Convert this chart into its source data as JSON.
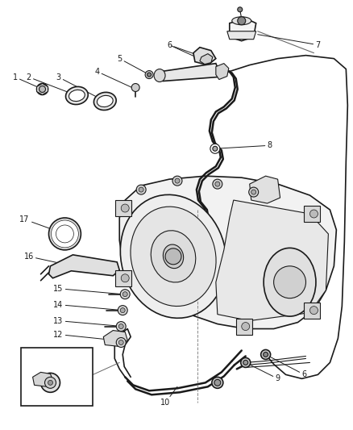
{
  "background_color": "#ffffff",
  "line_color": "#1a1a1a",
  "label_color": "#1a1a1a",
  "label_fontsize": 7.0,
  "fig_width": 4.38,
  "fig_height": 5.33,
  "dpi": 100
}
